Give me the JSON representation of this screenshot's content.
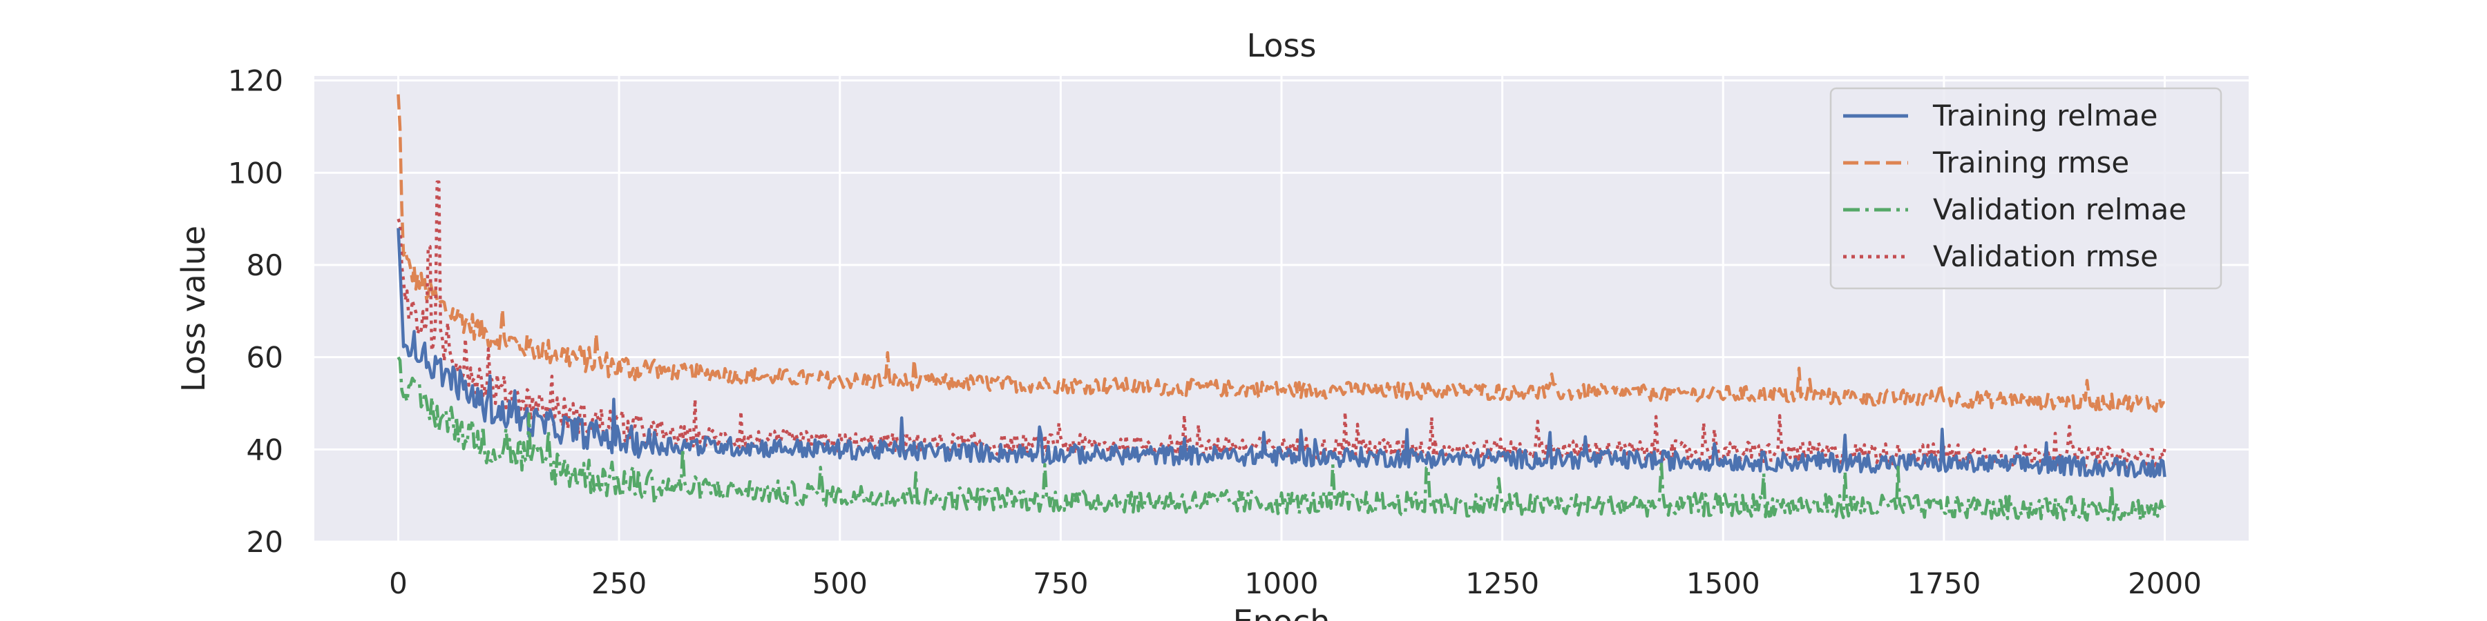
{
  "chart_data": {
    "type": "line",
    "title": "Loss",
    "xlabel": "Epoch",
    "ylabel": "Loss value",
    "xlim": [
      -95,
      2095
    ],
    "ylim": [
      20,
      121
    ],
    "xticks": [
      0,
      250,
      500,
      750,
      1000,
      1250,
      1500,
      1750,
      2000
    ],
    "yticks": [
      20,
      40,
      60,
      80,
      100,
      120
    ],
    "grid": true,
    "legend_position": "top-right",
    "x": [
      0,
      5,
      10,
      20,
      30,
      40,
      50,
      75,
      100,
      150,
      200,
      250,
      300,
      400,
      500,
      750,
      1000,
      1250,
      1500,
      1750,
      2000
    ],
    "series": [
      {
        "name": "Training relmae",
        "color": "#4c72b0",
        "dash": "solid",
        "values": [
          88,
          66,
          64,
          62,
          60,
          58,
          57,
          53,
          49,
          46,
          44,
          42,
          41,
          40.5,
          40,
          39,
          38.5,
          38,
          37.5,
          37,
          36
        ]
      },
      {
        "name": "Training rmse",
        "color": "#dd8452",
        "dash": "dashed",
        "values": [
          117,
          85,
          80,
          77,
          75,
          73,
          71,
          68,
          65,
          62,
          60,
          58,
          57,
          56,
          55,
          54,
          53,
          52.5,
          52,
          51,
          50
        ]
      },
      {
        "name": "Validation relmae",
        "color": "#55a868",
        "dash": "dashdot",
        "values": [
          60,
          56,
          53,
          51,
          50,
          48,
          47,
          44,
          41,
          38,
          35,
          33,
          32,
          31,
          30,
          29,
          28.5,
          28,
          28,
          27.5,
          27
        ]
      },
      {
        "name": "Validation rmse",
        "color": "#c44e52",
        "dash": "dotted",
        "values": [
          90,
          80,
          72,
          68,
          66,
          64,
          62,
          58,
          54,
          50,
          47,
          45,
          43,
          42,
          41.5,
          41,
          40.5,
          40,
          39.5,
          39,
          38
        ]
      }
    ],
    "spikes": [
      {
        "series": 1,
        "x": 0,
        "y": 117
      },
      {
        "series": 3,
        "x": 45,
        "y": 98
      },
      {
        "series": 3,
        "x": 35,
        "y": 84
      },
      {
        "series": 3,
        "x": 1170,
        "y": 47
      },
      {
        "series": 2,
        "x": 170,
        "y": 44
      },
      {
        "series": 2,
        "x": 1165,
        "y": 36
      }
    ],
    "noise": [
      3.5,
      3.0,
      4.2,
      3.8
    ]
  }
}
